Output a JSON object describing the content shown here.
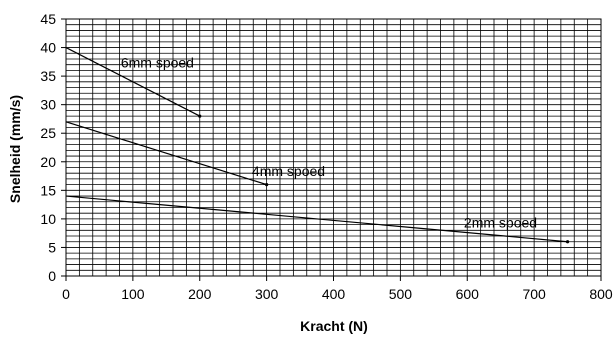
{
  "chart_data": {
    "type": "line",
    "title": "",
    "xlabel": "Kracht (N)",
    "ylabel": "Snelheid (mm/s)",
    "xlim": [
      0,
      800
    ],
    "ylim": [
      0,
      45
    ],
    "x_ticks": [
      0,
      100,
      200,
      300,
      400,
      500,
      600,
      700,
      800
    ],
    "y_ticks": [
      0,
      5,
      10,
      15,
      20,
      25,
      30,
      35,
      40,
      45
    ],
    "grid": {
      "x_minor_step": 20,
      "y_minor_step": 1
    },
    "legend": "none",
    "series": [
      {
        "name": "6mm spoed",
        "x": [
          0,
          200
        ],
        "y": [
          40,
          28
        ]
      },
      {
        "name": "4mm spoed",
        "x": [
          0,
          300
        ],
        "y": [
          27,
          16
        ]
      },
      {
        "name": "2mm spoed",
        "x": [
          0,
          750
        ],
        "y": [
          14,
          6
        ]
      }
    ],
    "annotations": [
      {
        "text": "6mm spoed",
        "x": 82,
        "y": 36.5
      },
      {
        "text": "4mm spoed",
        "x": 278,
        "y": 17.5
      },
      {
        "text": "2mm spoed",
        "x": 595,
        "y": 8.5
      }
    ],
    "line_color": "#000000"
  }
}
